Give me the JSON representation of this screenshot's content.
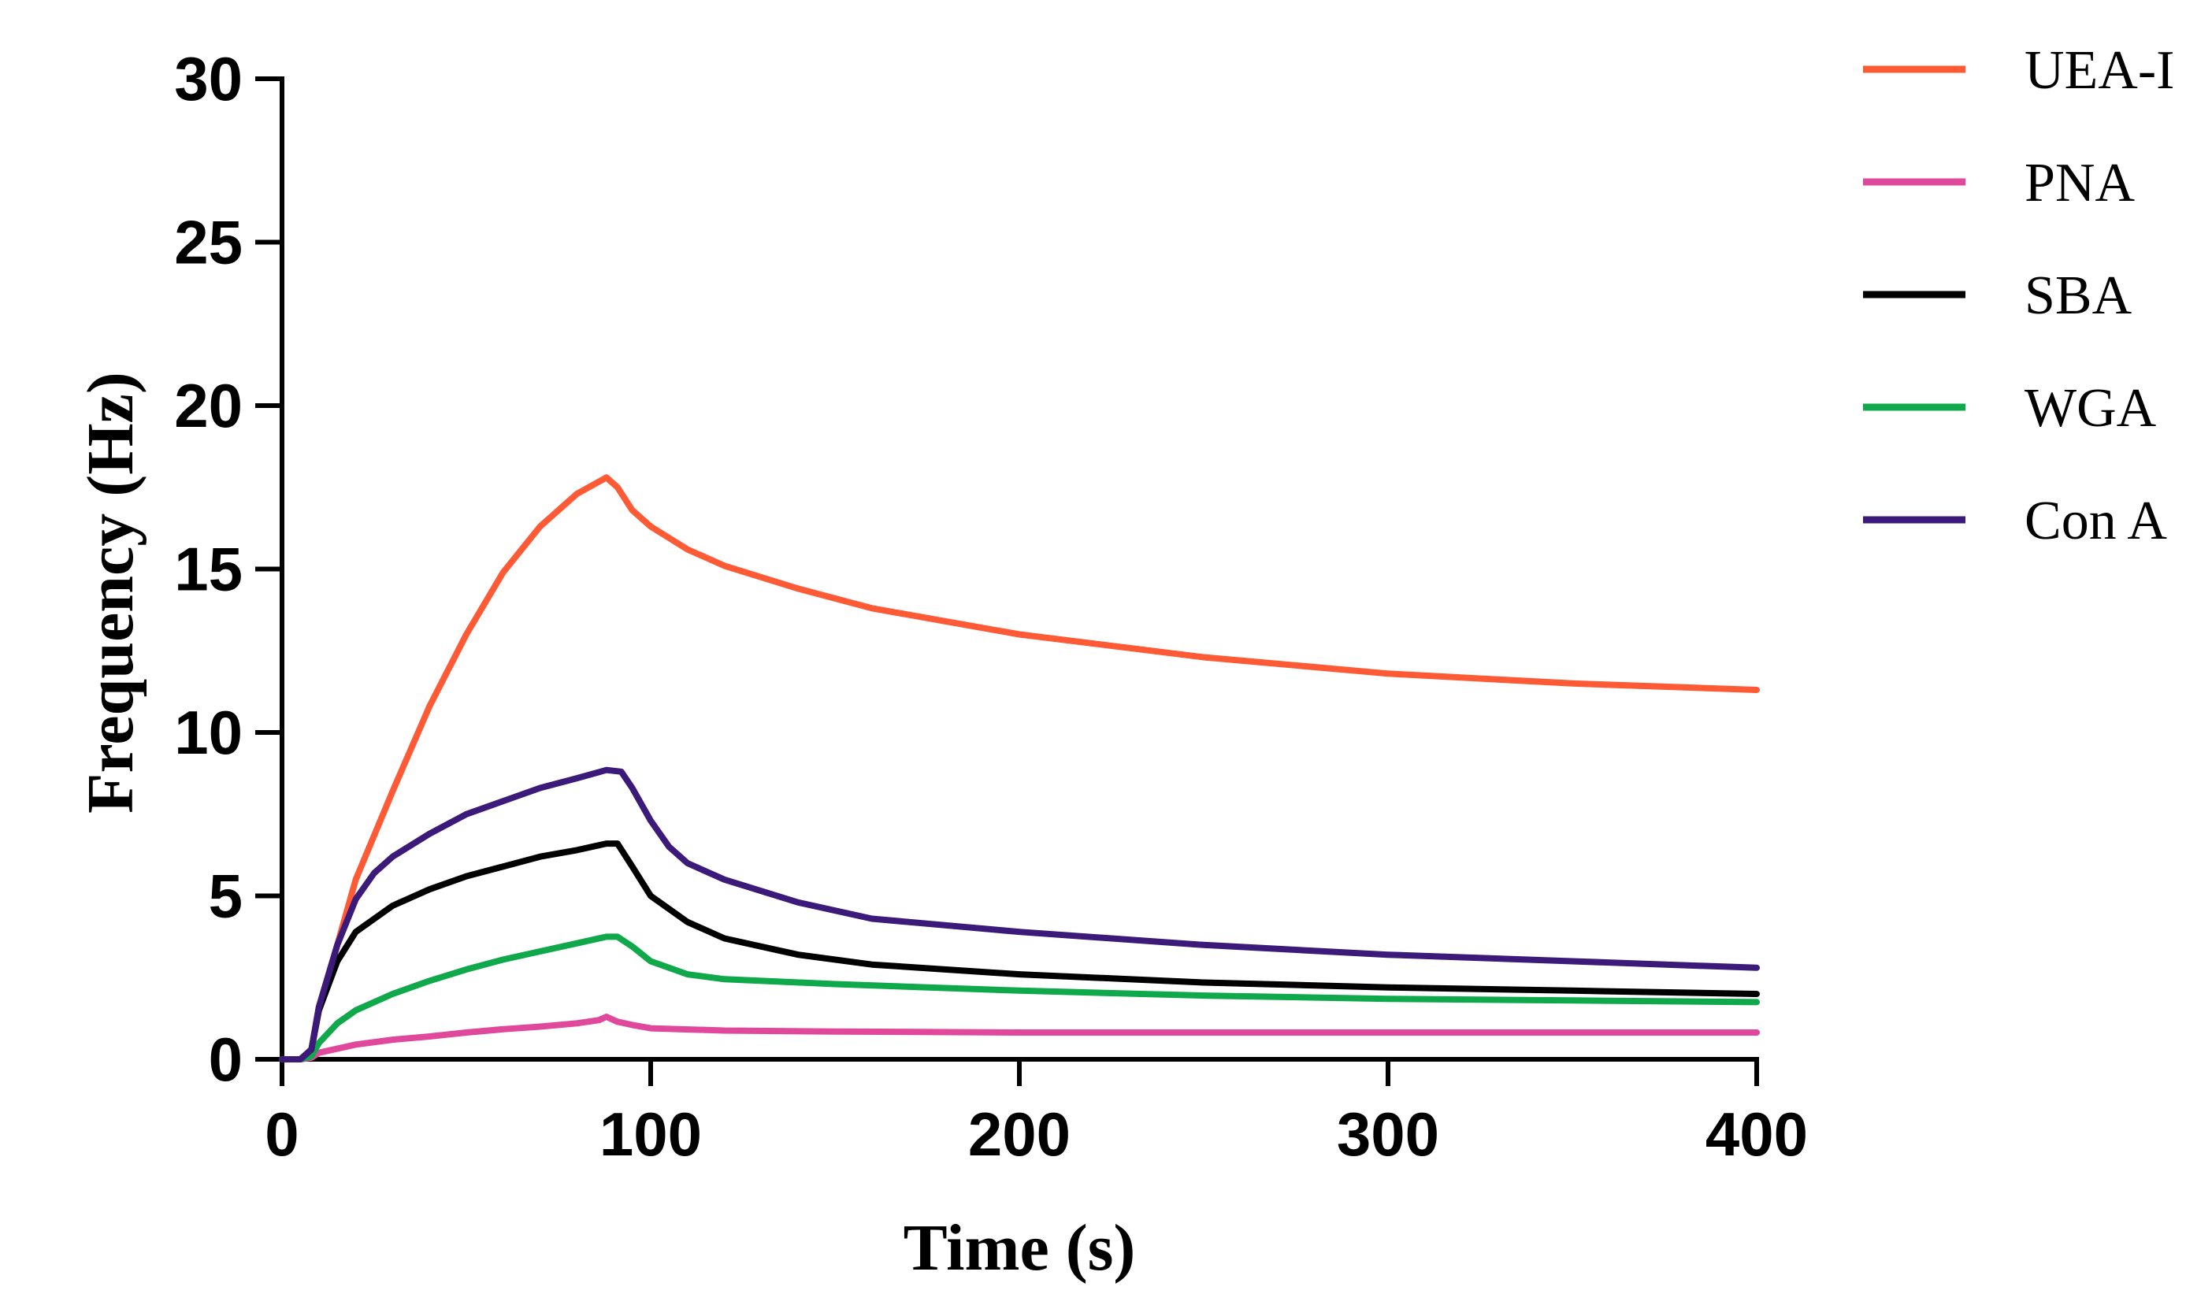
{
  "chart_data": {
    "type": "line",
    "title": "",
    "xlabel": "Time (s)",
    "ylabel": "Frequency (Hz)",
    "xlim": [
      0,
      400
    ],
    "ylim": [
      0,
      30
    ],
    "xticks": [
      0,
      100,
      200,
      300,
      400
    ],
    "yticks": [
      0,
      5,
      10,
      15,
      20,
      25,
      30
    ],
    "grid": false,
    "legend_position": "top-right, outside plot",
    "series": [
      {
        "name": "UEA-I",
        "color": "#ff5a36",
        "x": [
          0,
          5,
          8,
          10,
          15,
          20,
          30,
          40,
          50,
          60,
          70,
          80,
          88,
          91,
          95,
          100,
          110,
          120,
          140,
          160,
          180,
          200,
          250,
          300,
          350,
          400
        ],
        "y": [
          0,
          0,
          0.3,
          1.6,
          3.5,
          5.5,
          8.2,
          10.8,
          13.0,
          14.9,
          16.3,
          17.3,
          17.8,
          17.5,
          16.8,
          16.3,
          15.6,
          15.1,
          14.4,
          13.8,
          13.4,
          13.0,
          12.3,
          11.8,
          11.5,
          11.3
        ]
      },
      {
        "name": "PNA",
        "color": "#e0489c",
        "x": [
          0,
          5,
          8,
          10,
          20,
          30,
          40,
          50,
          60,
          70,
          80,
          86,
          88,
          91,
          95,
          100,
          120,
          150,
          200,
          250,
          300,
          350,
          400
        ],
        "y": [
          0,
          0,
          0.05,
          0.2,
          0.45,
          0.6,
          0.7,
          0.82,
          0.92,
          1.0,
          1.1,
          1.2,
          1.3,
          1.15,
          1.05,
          0.95,
          0.88,
          0.85,
          0.82,
          0.82,
          0.82,
          0.82,
          0.82
        ]
      },
      {
        "name": "SBA",
        "color": "#000000",
        "x": [
          0,
          5,
          8,
          10,
          15,
          20,
          30,
          40,
          50,
          60,
          70,
          80,
          88,
          91,
          95,
          100,
          110,
          120,
          140,
          160,
          200,
          250,
          300,
          350,
          400
        ],
        "y": [
          0,
          0,
          0.3,
          1.5,
          3.0,
          3.9,
          4.7,
          5.2,
          5.6,
          5.9,
          6.2,
          6.4,
          6.6,
          6.6,
          5.9,
          5.0,
          4.2,
          3.7,
          3.2,
          2.9,
          2.6,
          2.35,
          2.2,
          2.1,
          2.0
        ]
      },
      {
        "name": "WGA",
        "color": "#0fa84b",
        "x": [
          0,
          5,
          8,
          10,
          15,
          20,
          30,
          40,
          50,
          60,
          70,
          80,
          88,
          91,
          95,
          100,
          110,
          120,
          150,
          200,
          250,
          300,
          350,
          400
        ],
        "y": [
          0,
          0,
          0.1,
          0.5,
          1.1,
          1.5,
          2.0,
          2.4,
          2.75,
          3.05,
          3.3,
          3.55,
          3.75,
          3.75,
          3.45,
          3.0,
          2.6,
          2.45,
          2.3,
          2.1,
          1.95,
          1.85,
          1.8,
          1.75
        ]
      },
      {
        "name": "Con A",
        "color": "#3b1a7a",
        "x": [
          0,
          5,
          8,
          10,
          15,
          20,
          25,
          30,
          40,
          50,
          60,
          70,
          80,
          88,
          92,
          95,
          100,
          105,
          110,
          120,
          140,
          160,
          200,
          250,
          300,
          350,
          400
        ],
        "y": [
          0,
          0,
          0.3,
          1.6,
          3.5,
          4.9,
          5.7,
          6.2,
          6.9,
          7.5,
          7.9,
          8.3,
          8.6,
          8.85,
          8.8,
          8.3,
          7.3,
          6.5,
          6.0,
          5.5,
          4.8,
          4.3,
          3.9,
          3.5,
          3.2,
          3.0,
          2.8
        ]
      }
    ]
  }
}
